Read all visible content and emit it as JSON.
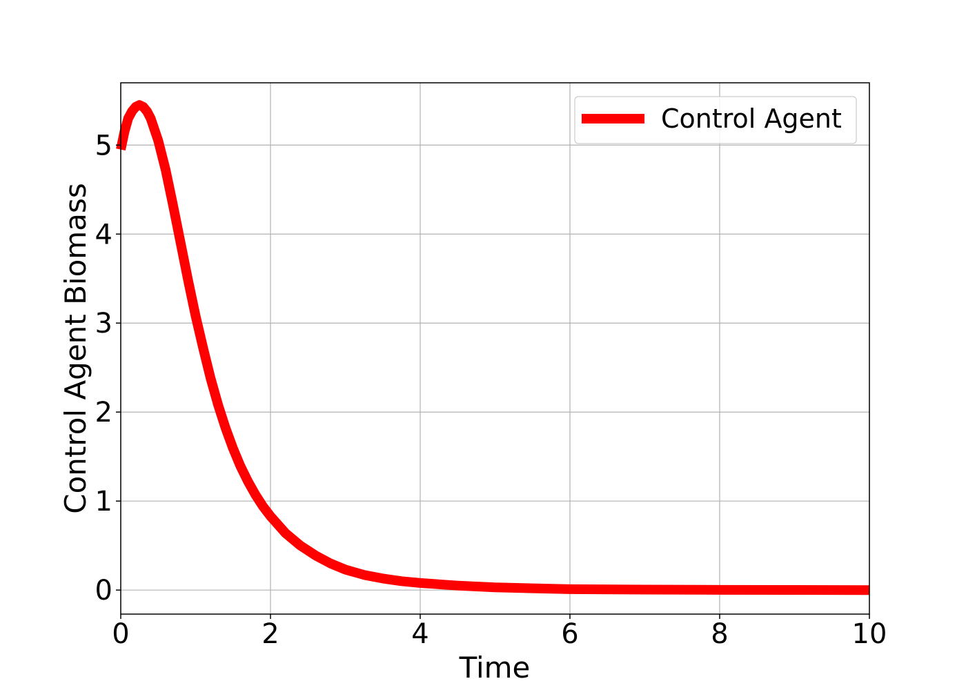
{
  "chart_data": {
    "type": "line",
    "title": "",
    "xlabel": "Time",
    "ylabel": "Control Agent Biomass",
    "xlim": [
      0,
      10
    ],
    "ylim": [
      -0.27,
      5.7
    ],
    "xticks": [
      0,
      2,
      4,
      6,
      8,
      10
    ],
    "yticks": [
      0,
      1,
      2,
      3,
      4,
      5
    ],
    "grid": true,
    "legend": {
      "position": "top-right",
      "entries": [
        "Control Agent"
      ]
    },
    "series": [
      {
        "name": "Control Agent",
        "color": "#ff0000",
        "x": [
          0.0,
          0.05,
          0.1,
          0.15,
          0.2,
          0.25,
          0.3,
          0.35,
          0.4,
          0.5,
          0.6,
          0.7,
          0.8,
          0.9,
          1.0,
          1.1,
          1.2,
          1.3,
          1.4,
          1.5,
          1.6,
          1.7,
          1.8,
          1.9,
          2.0,
          2.2,
          2.4,
          2.6,
          2.8,
          3.0,
          3.25,
          3.5,
          3.75,
          4.0,
          4.5,
          5.0,
          5.5,
          6.0,
          7.0,
          8.0,
          9.0,
          10.0
        ],
        "y": [
          4.95,
          5.15,
          5.3,
          5.38,
          5.43,
          5.45,
          5.43,
          5.38,
          5.3,
          5.05,
          4.72,
          4.32,
          3.9,
          3.48,
          3.08,
          2.72,
          2.38,
          2.08,
          1.82,
          1.59,
          1.39,
          1.22,
          1.07,
          0.94,
          0.83,
          0.64,
          0.5,
          0.39,
          0.3,
          0.23,
          0.17,
          0.13,
          0.1,
          0.08,
          0.05,
          0.03,
          0.02,
          0.01,
          0.005,
          0.002,
          0.001,
          0.0
        ]
      }
    ]
  }
}
